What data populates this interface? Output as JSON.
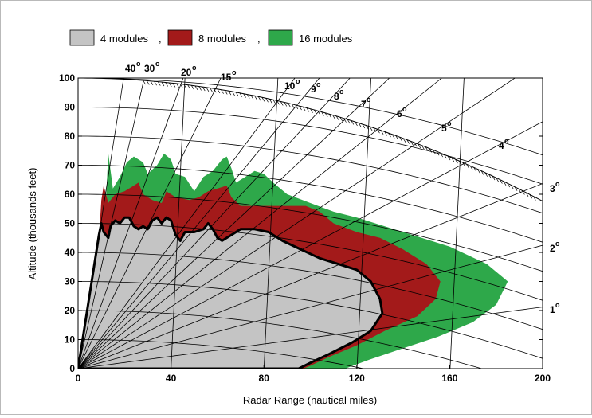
{
  "chart_data": {
    "type": "area",
    "title": "",
    "xlabel": "Radar Range (nautical miles)",
    "ylabel": "Altitude (thousands feet)",
    "xlim": [
      0,
      200
    ],
    "ylim": [
      0,
      100
    ],
    "x_ticks": [
      "0",
      "40",
      "80",
      "120",
      "160",
      "200"
    ],
    "y_ticks": [
      "0",
      "10",
      "20",
      "30",
      "40",
      "50",
      "60",
      "70",
      "80",
      "90",
      "100"
    ],
    "legend_position": "top",
    "elevation_angle_labels": [
      "40",
      "30",
      "20",
      "15",
      "10",
      "9",
      "8",
      "7",
      "6",
      "5",
      "4",
      "3",
      "2",
      "1"
    ],
    "elevation_angles_deg": [
      40,
      30,
      20,
      15,
      10,
      9,
      8,
      7,
      6,
      5,
      4,
      3,
      2,
      1
    ],
    "degree_symbol": "o",
    "series": [
      {
        "name": "16 modules",
        "color": "#2ea84a",
        "points": [
          [
            0,
            0
          ],
          [
            10,
            30
          ],
          [
            12,
            58
          ],
          [
            13,
            74
          ],
          [
            15,
            62
          ],
          [
            18,
            66
          ],
          [
            21,
            71
          ],
          [
            24,
            73
          ],
          [
            28,
            71
          ],
          [
            30,
            67
          ],
          [
            34,
            70
          ],
          [
            37,
            74
          ],
          [
            40,
            72
          ],
          [
            42,
            67
          ],
          [
            46,
            66
          ],
          [
            50,
            61
          ],
          [
            54,
            66
          ],
          [
            58,
            68
          ],
          [
            62,
            72
          ],
          [
            64,
            73
          ],
          [
            66,
            69
          ],
          [
            68,
            64
          ],
          [
            72,
            66
          ],
          [
            76,
            68
          ],
          [
            80,
            67
          ],
          [
            84,
            64
          ],
          [
            90,
            60
          ],
          [
            100,
            57
          ],
          [
            110,
            54
          ],
          [
            120,
            52
          ],
          [
            140,
            47
          ],
          [
            160,
            42
          ],
          [
            176,
            36
          ],
          [
            185,
            30
          ],
          [
            180,
            22
          ],
          [
            170,
            16
          ],
          [
            155,
            11
          ],
          [
            140,
            7
          ],
          [
            125,
            3
          ],
          [
            115,
            0
          ],
          [
            0,
            0
          ]
        ]
      },
      {
        "name": "8 modules",
        "color": "#a31a1a",
        "points": [
          [
            0,
            0
          ],
          [
            9,
            45
          ],
          [
            10,
            58
          ],
          [
            11,
            63
          ],
          [
            13,
            57
          ],
          [
            16,
            60
          ],
          [
            20,
            61
          ],
          [
            24,
            63
          ],
          [
            26,
            64
          ],
          [
            28,
            60
          ],
          [
            32,
            58
          ],
          [
            36,
            57
          ],
          [
            38,
            61
          ],
          [
            42,
            59
          ],
          [
            48,
            58
          ],
          [
            52,
            59
          ],
          [
            56,
            61
          ],
          [
            60,
            62
          ],
          [
            64,
            63
          ],
          [
            66,
            59
          ],
          [
            70,
            56
          ],
          [
            80,
            56
          ],
          [
            90,
            56
          ],
          [
            98,
            56
          ],
          [
            104,
            54
          ],
          [
            110,
            50
          ],
          [
            120,
            47
          ],
          [
            130,
            45
          ],
          [
            140,
            41
          ],
          [
            150,
            36
          ],
          [
            156,
            30
          ],
          [
            154,
            24
          ],
          [
            146,
            18
          ],
          [
            132,
            13
          ],
          [
            120,
            8
          ],
          [
            108,
            4
          ],
          [
            100,
            1
          ],
          [
            97,
            0
          ],
          [
            0,
            0
          ]
        ]
      },
      {
        "name": "4 modules",
        "color": "#c4c4c4",
        "points": [
          [
            0,
            0
          ],
          [
            9,
            46
          ],
          [
            10,
            50
          ],
          [
            11,
            47
          ],
          [
            13,
            45
          ],
          [
            14,
            49
          ],
          [
            16,
            51
          ],
          [
            18,
            50
          ],
          [
            20,
            52
          ],
          [
            22,
            52
          ],
          [
            24,
            49
          ],
          [
            26,
            48
          ],
          [
            28,
            49
          ],
          [
            30,
            48
          ],
          [
            32,
            51
          ],
          [
            34,
            52
          ],
          [
            36,
            50
          ],
          [
            38,
            52
          ],
          [
            40,
            51
          ],
          [
            42,
            46
          ],
          [
            44,
            44
          ],
          [
            46,
            47
          ],
          [
            50,
            47
          ],
          [
            54,
            48
          ],
          [
            56,
            50
          ],
          [
            58,
            48
          ],
          [
            60,
            45
          ],
          [
            62,
            44
          ],
          [
            66,
            46
          ],
          [
            70,
            48
          ],
          [
            76,
            48
          ],
          [
            82,
            47
          ],
          [
            88,
            44
          ],
          [
            96,
            41
          ],
          [
            104,
            38
          ],
          [
            112,
            36
          ],
          [
            120,
            34
          ],
          [
            126,
            30
          ],
          [
            130,
            24
          ],
          [
            131,
            19
          ],
          [
            126,
            13
          ],
          [
            118,
            9
          ],
          [
            108,
            5
          ],
          [
            100,
            2
          ],
          [
            95,
            0
          ],
          [
            0,
            0
          ]
        ]
      }
    ]
  }
}
